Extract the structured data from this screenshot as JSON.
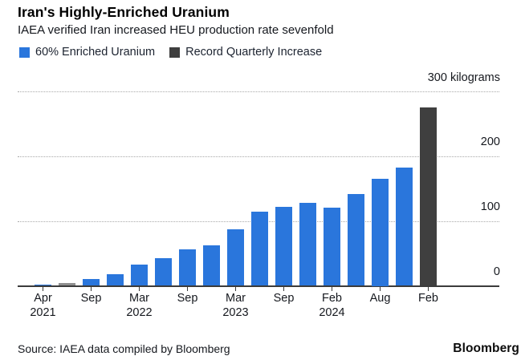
{
  "header": {
    "title": "Iran's Highly-Enriched Uranium",
    "subtitle": "IAEA verified Iran increased HEU production rate sevenfold"
  },
  "legend": [
    {
      "label": "60% Enriched Uranium",
      "color": "#2a76dc"
    },
    {
      "label": "Record Quarterly Increase",
      "color": "#3f3f3f"
    }
  ],
  "palette": {
    "blue": "#2a76dc",
    "gray": "#8f8f8f",
    "dark": "#3f3f3f"
  },
  "chart_data": {
    "type": "bar",
    "title": "Iran's Highly-Enriched Uranium",
    "subtitle": "IAEA verified Iran increased HEU production rate sevenfold",
    "ylabel": "kilograms",
    "xlabel": "",
    "ylim": [
      0,
      300
    ],
    "grid": "horizontal-dotted",
    "legend_position": "top-left",
    "values": [
      2,
      4,
      10,
      18,
      33,
      43,
      56,
      62,
      87,
      114,
      122,
      128,
      121,
      142,
      165,
      182,
      275
    ],
    "bar_colors": [
      "blue",
      "gray",
      "blue",
      "blue",
      "blue",
      "blue",
      "blue",
      "blue",
      "blue",
      "blue",
      "blue",
      "blue",
      "blue",
      "blue",
      "blue",
      "blue",
      "dark"
    ],
    "series": [
      {
        "name": "60% Enriched Uranium",
        "color_key": "blue"
      },
      {
        "name": "Record Quarterly Increase",
        "color_key": "dark"
      }
    ],
    "y_axis": {
      "ticks": [
        {
          "value": 0,
          "label": "0",
          "line": "solid"
        },
        {
          "value": 100,
          "label": "100",
          "line": "dotted"
        },
        {
          "value": 200,
          "label": "200",
          "line": "dotted"
        },
        {
          "value": 300,
          "label": "300 kilograms",
          "line": "dotted"
        }
      ]
    },
    "x_axis": {
      "ticks": [
        {
          "bar_index": 0,
          "month": "Apr",
          "year": "2021"
        },
        {
          "bar_index": 2,
          "month": "Sep",
          "year": ""
        },
        {
          "bar_index": 4,
          "month": "Mar",
          "year": "2022"
        },
        {
          "bar_index": 6,
          "month": "Sep",
          "year": ""
        },
        {
          "bar_index": 8,
          "month": "Mar",
          "year": "2023"
        },
        {
          "bar_index": 10,
          "month": "Sep",
          "year": ""
        },
        {
          "bar_index": 12,
          "month": "Feb",
          "year": "2024"
        },
        {
          "bar_index": 14,
          "month": "Aug",
          "year": ""
        },
        {
          "bar_index": 16,
          "month": "Feb",
          "year": ""
        }
      ]
    }
  },
  "footer": {
    "source": "Source: IAEA data compiled by Bloomberg",
    "logo": "Bloomberg"
  }
}
